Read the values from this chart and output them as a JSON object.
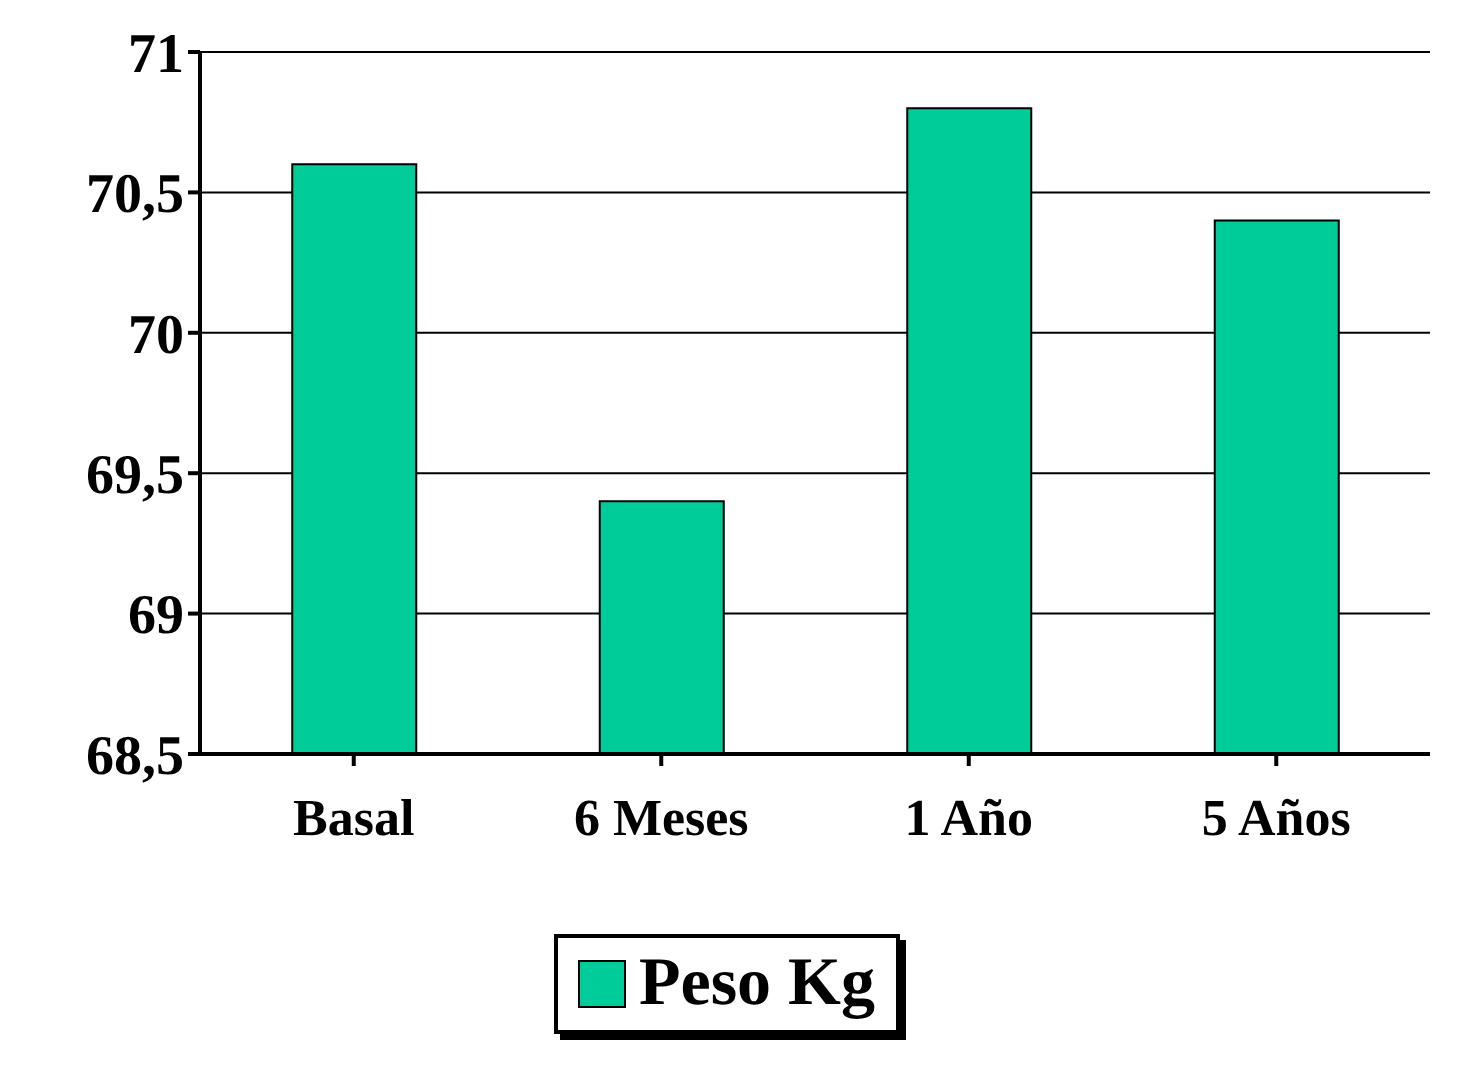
{
  "chart_data": {
    "type": "bar",
    "categories": [
      "Basal",
      "6 Meses",
      "1 Año",
      "5 Años"
    ],
    "series": [
      {
        "name": "Peso Kg",
        "color": "#00cc99",
        "values": [
          70.6,
          69.4,
          70.8,
          70.4
        ]
      }
    ],
    "ylim": [
      68.5,
      71
    ],
    "yticks": [
      {
        "value": 68.5,
        "label": "68,5"
      },
      {
        "value": 69,
        "label": "69"
      },
      {
        "value": 69.5,
        "label": "69,5"
      },
      {
        "value": 70,
        "label": "70"
      },
      {
        "value": 70.5,
        "label": "70,5"
      },
      {
        "value": 71,
        "label": "71"
      }
    ],
    "grid": "y",
    "legend": "bottom"
  }
}
